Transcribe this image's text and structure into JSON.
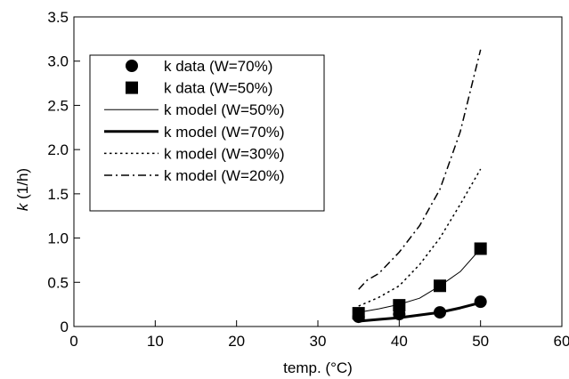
{
  "chart_data": {
    "type": "line",
    "xlabel": "temp. (°C)",
    "ylabel_italic": "k",
    "ylabel_rest": " (1/h)",
    "xlim": [
      0,
      60
    ],
    "ylim": [
      0,
      3.5
    ],
    "xticks": [
      0,
      10,
      20,
      30,
      40,
      50,
      60
    ],
    "yticks": [
      0,
      0.5,
      1.0,
      1.5,
      2.0,
      2.5,
      3.0,
      3.5
    ],
    "yticklabels": [
      "0",
      "0.5",
      "1.0",
      "1.5",
      "2.0",
      "2.5",
      "3.0",
      "3.5"
    ],
    "grid": false,
    "legend_position": "top-left",
    "series": [
      {
        "name": "k data (W=70%)",
        "kind": "marker",
        "marker": "circle",
        "color": "#000000",
        "x": [
          35,
          40,
          45,
          50
        ],
        "y": [
          0.11,
          0.14,
          0.16,
          0.28
        ]
      },
      {
        "name": "k data (W=50%)",
        "kind": "marker",
        "marker": "square",
        "color": "#000000",
        "x": [
          35,
          40,
          45,
          50
        ],
        "y": [
          0.15,
          0.24,
          0.46,
          0.88
        ]
      },
      {
        "name": "k model (W=50%)",
        "kind": "line",
        "style": "thin",
        "color": "#000000",
        "x": [
          35,
          37.5,
          40,
          42.5,
          45,
          47.5,
          50
        ],
        "y": [
          0.16,
          0.2,
          0.25,
          0.32,
          0.46,
          0.62,
          0.88
        ]
      },
      {
        "name": "k model (W=70%)",
        "kind": "line",
        "style": "thick",
        "color": "#000000",
        "x": [
          35,
          37.5,
          40,
          42.5,
          45,
          47.5,
          50
        ],
        "y": [
          0.06,
          0.08,
          0.1,
          0.13,
          0.16,
          0.21,
          0.27
        ]
      },
      {
        "name": "k model (W=30%)",
        "kind": "line",
        "style": "dotted",
        "color": "#000000",
        "x": [
          35,
          37.5,
          40,
          42.5,
          45,
          47.5,
          50
        ],
        "y": [
          0.23,
          0.33,
          0.46,
          0.7,
          1.0,
          1.38,
          1.78
        ]
      },
      {
        "name": "k model (W=20%)",
        "kind": "line",
        "style": "dashdot",
        "color": "#000000",
        "x": [
          35,
          36,
          37.5,
          40,
          42.5,
          45,
          47.5,
          50
        ],
        "y": [
          0.42,
          0.52,
          0.6,
          0.84,
          1.14,
          1.55,
          2.2,
          3.13
        ]
      }
    ]
  }
}
